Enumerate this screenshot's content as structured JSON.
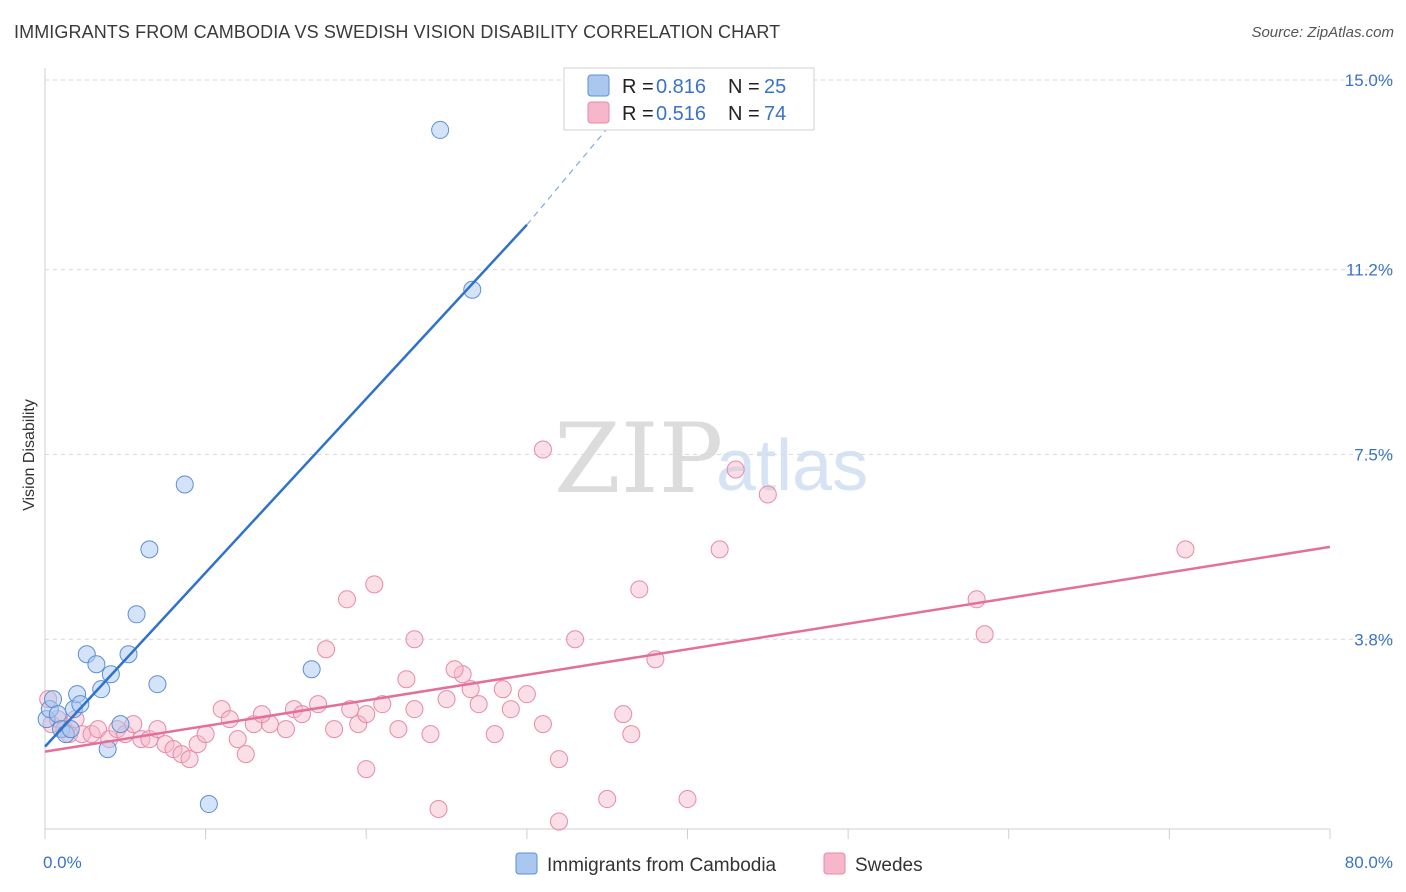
{
  "header": {
    "title": "IMMIGRANTS FROM CAMBODIA VS SWEDISH VISION DISABILITY CORRELATION CHART",
    "source": "Source: ZipAtlas.com"
  },
  "watermark": {
    "zip": "ZIP",
    "atlas": "atlas"
  },
  "colors": {
    "blue_fill": "#aac8ef",
    "blue_stroke": "#5b8fd6",
    "blue_line": "#2f72c9",
    "pink_fill": "#f5b7c9",
    "pink_stroke": "#e88aa8",
    "pink_line": "#e2709a",
    "grid": "#d9d9d9",
    "tick_text": "#3b73c4"
  },
  "legend": {
    "rows": [
      {
        "r_label": "R =",
        "r_value": "0.816",
        "n_label": "N =",
        "n_value": "25"
      },
      {
        "r_label": "R =",
        "r_value": "0.516",
        "n_label": "N =",
        "n_value": "74"
      }
    ]
  },
  "chart_data": {
    "type": "scatter",
    "title": "IMMIGRANTS FROM CAMBODIA VS SWEDISH VISION DISABILITY CORRELATION CHART",
    "xlabel": "",
    "ylabel": "Vision Disability",
    "xlim": [
      0,
      80
    ],
    "ylim": [
      0,
      15
    ],
    "x_tick_labels": [
      "0.0%",
      "80.0%"
    ],
    "y_ticks": [
      3.8,
      7.5,
      11.2,
      15.0
    ],
    "y_tick_labels": [
      "3.8%",
      "7.5%",
      "11.2%",
      "15.0%"
    ],
    "legend_position": "bottom",
    "series": [
      {
        "name": "Immigrants from Cambodia",
        "color": "#aac8ef",
        "r": 0.816,
        "n": 25,
        "points": [
          [
            0.1,
            2.2
          ],
          [
            0.3,
            2.4
          ],
          [
            0.5,
            2.6
          ],
          [
            0.8,
            2.3
          ],
          [
            1.0,
            2.0
          ],
          [
            1.3,
            1.9
          ],
          [
            1.6,
            2.0
          ],
          [
            1.8,
            2.4
          ],
          [
            2.0,
            2.7
          ],
          [
            2.2,
            2.5
          ],
          [
            2.6,
            3.5
          ],
          [
            3.2,
            3.3
          ],
          [
            3.5,
            2.8
          ],
          [
            3.9,
            1.6
          ],
          [
            4.1,
            3.1
          ],
          [
            4.7,
            2.1
          ],
          [
            5.2,
            3.5
          ],
          [
            5.7,
            4.3
          ],
          [
            6.5,
            5.6
          ],
          [
            7.0,
            2.9
          ],
          [
            8.7,
            6.9
          ],
          [
            10.2,
            0.5
          ],
          [
            16.6,
            3.2
          ],
          [
            24.6,
            14.0
          ],
          [
            26.6,
            10.8
          ]
        ],
        "trend": {
          "solid": [
            [
              0,
              1.65
            ],
            [
              30,
              12.1
            ]
          ],
          "dashed": [
            [
              30,
              12.1
            ],
            [
              37,
              14.8
            ]
          ]
        }
      },
      {
        "name": "Swedes",
        "color": "#f5b7c9",
        "r": 0.516,
        "n": 74,
        "points": [
          [
            0.2,
            2.6
          ],
          [
            0.4,
            2.1
          ],
          [
            0.8,
            2.2
          ],
          [
            1.2,
            2.0
          ],
          [
            1.5,
            1.9
          ],
          [
            1.9,
            2.2
          ],
          [
            2.3,
            1.9
          ],
          [
            2.9,
            1.9
          ],
          [
            3.3,
            2.0
          ],
          [
            4.0,
            1.8
          ],
          [
            4.5,
            2.0
          ],
          [
            5.0,
            1.9
          ],
          [
            5.5,
            2.1
          ],
          [
            6.0,
            1.8
          ],
          [
            6.5,
            1.8
          ],
          [
            7.0,
            2.0
          ],
          [
            7.5,
            1.7
          ],
          [
            8.0,
            1.6
          ],
          [
            8.5,
            1.5
          ],
          [
            9.0,
            1.4
          ],
          [
            9.5,
            1.7
          ],
          [
            10.0,
            1.9
          ],
          [
            11.0,
            2.4
          ],
          [
            11.5,
            2.2
          ],
          [
            12.0,
            1.8
          ],
          [
            12.5,
            1.5
          ],
          [
            13.0,
            2.1
          ],
          [
            14.0,
            2.1
          ],
          [
            15.0,
            2.0
          ],
          [
            15.5,
            2.4
          ],
          [
            16.0,
            2.3
          ],
          [
            17.0,
            2.5
          ],
          [
            18.0,
            2.0
          ],
          [
            19.0,
            2.4
          ],
          [
            19.5,
            2.1
          ],
          [
            20.0,
            2.3
          ],
          [
            21.0,
            2.5
          ],
          [
            22.0,
            2.0
          ],
          [
            23.0,
            2.4
          ],
          [
            24.0,
            1.9
          ],
          [
            25.0,
            2.6
          ],
          [
            26.0,
            3.1
          ],
          [
            26.5,
            2.8
          ],
          [
            27.0,
            2.5
          ],
          [
            28.0,
            1.9
          ],
          [
            29.0,
            2.4
          ],
          [
            30.0,
            2.7
          ],
          [
            31.0,
            2.1
          ],
          [
            32.0,
            1.4
          ],
          [
            33.0,
            3.8
          ],
          [
            35.0,
            0.6
          ],
          [
            37.0,
            4.8
          ],
          [
            38.0,
            3.4
          ],
          [
            40.0,
            0.6
          ],
          [
            42.0,
            5.6
          ],
          [
            43.0,
            7.2
          ],
          [
            45.0,
            6.7
          ],
          [
            58.0,
            4.6
          ],
          [
            58.5,
            3.9
          ],
          [
            71.0,
            5.6
          ],
          [
            18.8,
            4.6
          ],
          [
            20.5,
            4.9
          ],
          [
            17.5,
            3.6
          ],
          [
            25.5,
            3.2
          ],
          [
            22.5,
            3.0
          ],
          [
            20.0,
            1.2
          ],
          [
            24.5,
            0.4
          ],
          [
            32.0,
            0.15
          ],
          [
            36.0,
            2.3
          ],
          [
            36.5,
            1.9
          ],
          [
            28.5,
            2.8
          ],
          [
            23.0,
            3.8
          ],
          [
            31.0,
            7.6
          ],
          [
            13.5,
            2.3
          ]
        ],
        "trend": {
          "solid": [
            [
              0,
              1.55
            ],
            [
              80,
              5.65
            ]
          ]
        }
      }
    ]
  }
}
